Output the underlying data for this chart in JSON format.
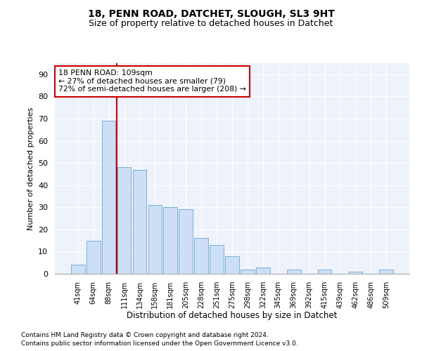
{
  "title1": "18, PENN ROAD, DATCHET, SLOUGH, SL3 9HT",
  "title2": "Size of property relative to detached houses in Datchet",
  "xlabel": "Distribution of detached houses by size in Datchet",
  "ylabel": "Number of detached properties",
  "categories": [
    "41sqm",
    "64sqm",
    "88sqm",
    "111sqm",
    "134sqm",
    "158sqm",
    "181sqm",
    "205sqm",
    "228sqm",
    "251sqm",
    "275sqm",
    "298sqm",
    "322sqm",
    "345sqm",
    "369sqm",
    "392sqm",
    "415sqm",
    "439sqm",
    "462sqm",
    "486sqm",
    "509sqm"
  ],
  "values": [
    4,
    15,
    69,
    48,
    47,
    31,
    30,
    29,
    16,
    13,
    8,
    2,
    3,
    0,
    2,
    0,
    2,
    0,
    1,
    0,
    2
  ],
  "bar_color": "#ccdff5",
  "bar_edge_color": "#7ab0d8",
  "vline_color": "#cc0000",
  "annotation_text": "18 PENN ROAD: 109sqm\n← 27% of detached houses are smaller (79)\n72% of semi-detached houses are larger (208) →",
  "annotation_box_color": "white",
  "annotation_box_edge": "#cc0000",
  "ylim": [
    0,
    95
  ],
  "yticks": [
    0,
    10,
    20,
    30,
    40,
    50,
    60,
    70,
    80,
    90
  ],
  "bg_color": "#eef2fb",
  "grid_color": "white",
  "footer1": "Contains HM Land Registry data © Crown copyright and database right 2024.",
  "footer2": "Contains public sector information licensed under the Open Government Licence v3.0."
}
